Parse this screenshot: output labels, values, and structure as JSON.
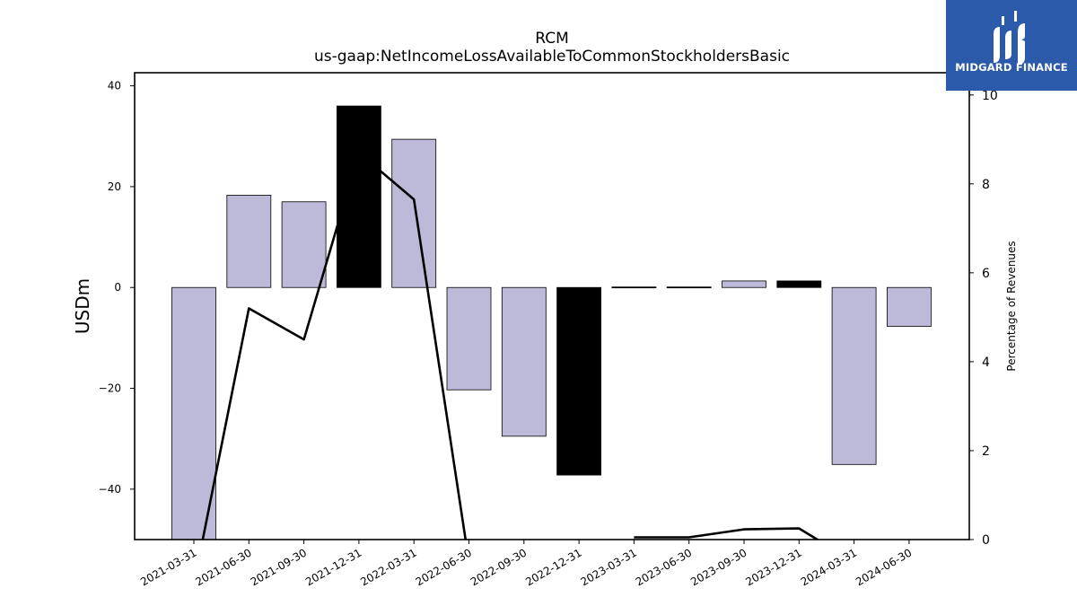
{
  "chart_data": {
    "type": "bar",
    "title": "RCM",
    "subtitle": "us-gaap:NetIncomeLossAvailableToCommonStockholdersBasic",
    "ylabel": "USDm",
    "ylabel_right": "Percentage of Revenues",
    "ylim": [
      -50,
      42.6
    ],
    "ylim_right": [
      0,
      10.5
    ],
    "categories": [
      "2021-03-31",
      "2021-06-30",
      "2021-09-30",
      "2021-12-31",
      "2022-03-31",
      "2022-06-30",
      "2022-09-30",
      "2022-12-31",
      "2023-03-31",
      "2023-06-30",
      "2023-09-30",
      "2023-12-31",
      "2024-03-31",
      "2024-06-30"
    ],
    "series": [
      {
        "kind": "bar",
        "values": [
          -50.5,
          18.3,
          17.0,
          36.0,
          29.4,
          -20.3,
          -29.5,
          -37.2,
          0.1,
          0.1,
          1.3,
          1.3,
          -35.1,
          -7.7
        ],
        "colors": [
          "#bdbad9",
          "#bdbad9",
          "#bdbad9",
          "#000000",
          "#bdbad9",
          "#bdbad9",
          "#bdbad9",
          "#000000",
          "#000000",
          "#000000",
          "#bdbad9",
          "#000000",
          "#bdbad9",
          "#bdbad9"
        ]
      },
      {
        "kind": "line",
        "axis": "right",
        "color": "#000000",
        "values": [
          -1.0,
          5.2,
          4.5,
          8.7,
          7.65,
          -0.5,
          null,
          null,
          0.05,
          0.05,
          0.23,
          0.25,
          -0.5,
          null
        ]
      }
    ],
    "yticks_left": [
      -40,
      -20,
      0,
      20,
      40
    ],
    "yticks_left_labels": [
      "−40",
      "−20",
      "0",
      "20",
      "40"
    ],
    "yticks_right": [
      0,
      2,
      4,
      6,
      8,
      10
    ],
    "grid": false
  },
  "logo": {
    "text": "MIDGARD FINANCE",
    "bg_color": "#2b5aab"
  }
}
